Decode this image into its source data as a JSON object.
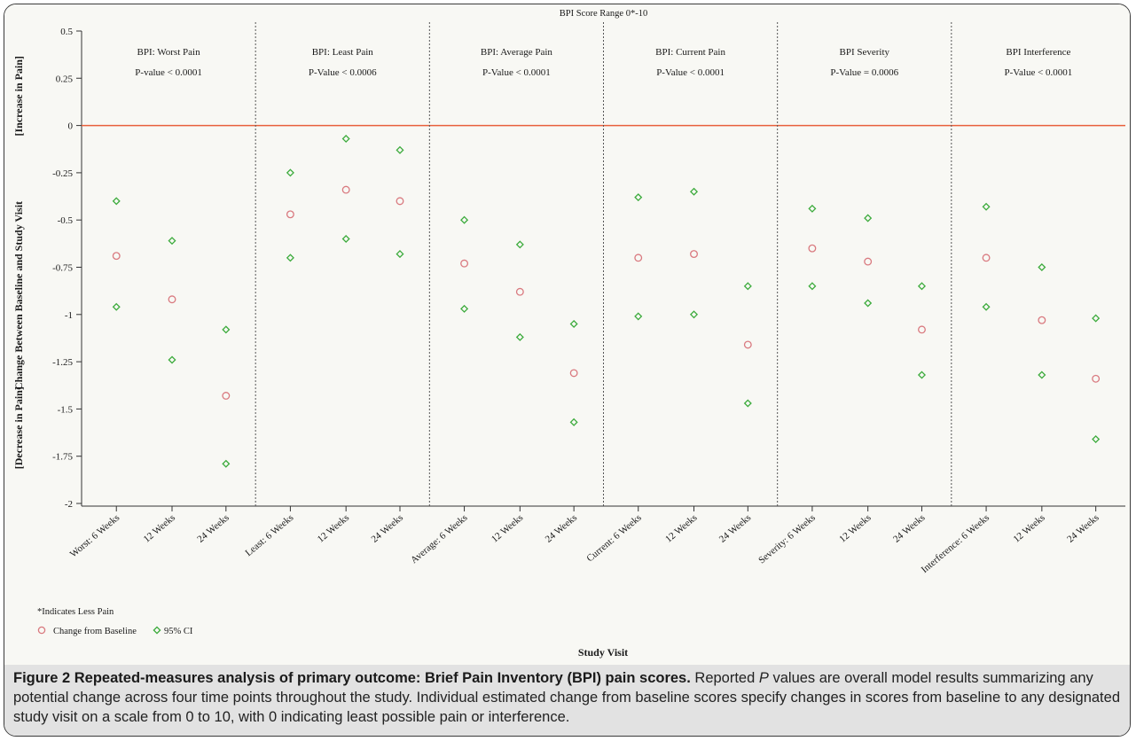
{
  "chart_data": {
    "type": "scatter",
    "top_label": "BPI Score Range 0*-10",
    "ylabel": "Change Between Baseline and Study Visit",
    "ylabel_top": "[Increase in Pain]",
    "ylabel_bottom": "[Decrease in Pain]",
    "xlabel": "Study Visit",
    "ylim": [
      -2,
      0.5
    ],
    "yticks": [
      "0.5",
      "0.25",
      "0",
      "-0.25",
      "-0.5",
      "-0.75",
      "-1",
      "-1.25",
      "-1.5",
      "-1.75",
      "-2"
    ],
    "ytick_values": [
      0.5,
      0.25,
      0,
      -0.25,
      -0.5,
      -0.75,
      -1,
      -1.25,
      -1.5,
      -1.75,
      -2
    ],
    "reference_line": 0,
    "footnote": "*Indicates Less Pain",
    "legend": [
      {
        "name": "Change from Baseline",
        "marker": "circle",
        "color": "#d9797f"
      },
      {
        "name": "95% CI",
        "marker": "diamond",
        "color": "#3cab3c"
      }
    ],
    "panels": [
      {
        "title": "BPI: Worst Pain",
        "pvalue": "P-value < 0.0001",
        "categories": [
          "Worst: 6 Weeks",
          "12 Weeks",
          "24 Weeks"
        ],
        "estimate": [
          -0.69,
          -0.92,
          -1.43
        ],
        "ci_upper": [
          -0.4,
          -0.61,
          -1.08
        ],
        "ci_lower": [
          -0.96,
          -1.24,
          -1.79
        ]
      },
      {
        "title": "BPI: Least Pain",
        "pvalue": "P-Value < 0.0006",
        "categories": [
          "Least: 6 Weeks",
          "12 Weeks",
          "24 Weeks"
        ],
        "estimate": [
          -0.47,
          -0.34,
          -0.4
        ],
        "ci_upper": [
          -0.25,
          -0.07,
          -0.13
        ],
        "ci_lower": [
          -0.7,
          -0.6,
          -0.68
        ]
      },
      {
        "title": "BPI: Average Pain",
        "pvalue": "P-Value < 0.0001",
        "categories": [
          "Average: 6 Weeks",
          "12 Weeks",
          "24 Weeks"
        ],
        "estimate": [
          -0.73,
          -0.88,
          -1.31
        ],
        "ci_upper": [
          -0.5,
          -0.63,
          -1.05
        ],
        "ci_lower": [
          -0.97,
          -1.12,
          -1.57
        ]
      },
      {
        "title": "BPI: Current Pain",
        "pvalue": "P-Value < 0.0001",
        "categories": [
          "Current: 6 Weeks",
          "12 Weeks",
          "24 Weeks"
        ],
        "estimate": [
          -0.7,
          -0.68,
          -1.16
        ],
        "ci_upper": [
          -0.38,
          -0.35,
          -0.85
        ],
        "ci_lower": [
          -1.01,
          -1.0,
          -1.47
        ]
      },
      {
        "title": "BPI Severity",
        "pvalue": "P-Value = 0.0006",
        "categories": [
          "Severity: 6 Weeks",
          "12 Weeks",
          "24 Weeks"
        ],
        "estimate": [
          -0.65,
          -0.72,
          -1.08
        ],
        "ci_upper": [
          -0.44,
          -0.49,
          -0.85
        ],
        "ci_lower": [
          -0.85,
          -0.94,
          -1.32
        ]
      },
      {
        "title": "BPI Interference",
        "pvalue": "P-Value < 0.0001",
        "categories": [
          "Interference: 6 Weeks",
          "12 Weeks",
          "24 Weeks"
        ],
        "estimate": [
          -0.7,
          -1.03,
          -1.34
        ],
        "ci_upper": [
          -0.43,
          -0.75,
          -1.02
        ],
        "ci_lower": [
          -0.96,
          -1.32,
          -1.66
        ]
      }
    ]
  },
  "colors": {
    "estimate": "#d9797f",
    "ci": "#3cab3c",
    "zero_line": "#e8603c",
    "divider": "#555555",
    "caption_bg": "#e2e2e2"
  },
  "caption": {
    "title": "Figure 2 Repeated-measures analysis of primary outcome: Brief Pain Inventory (BPI) pain scores.",
    "text_before_p": " Reported ",
    "p_italic": "P",
    "text_after_p": " values are overall model results summarizing any potential change across four time points throughout the study. Individual estimated change from baseline scores specify changes in scores from baseline to any designated study visit on a scale from 0 to 10, with 0 indicating least possible pain or interference."
  }
}
